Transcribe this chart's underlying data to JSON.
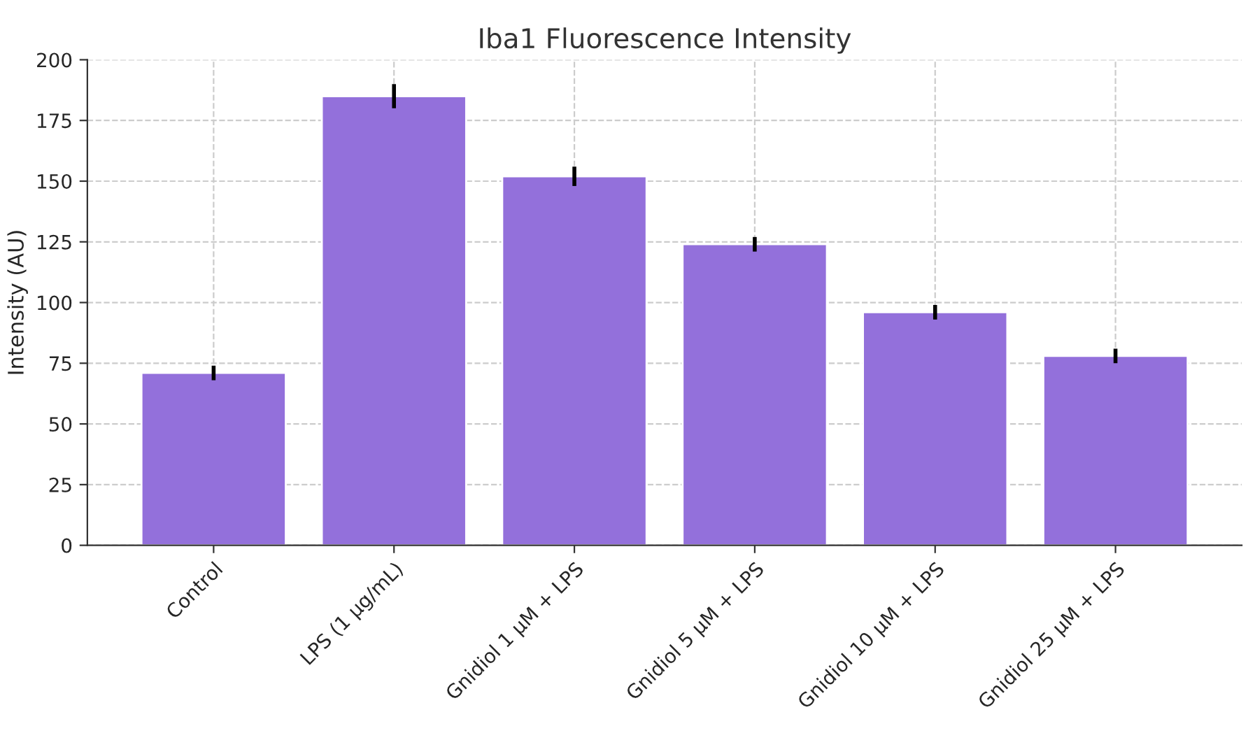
{
  "chart_data": {
    "type": "bar",
    "title": "Iba1 Fluorescence Intensity",
    "ylabel": "Intensity (AU)",
    "categories": [
      "Control",
      "LPS (1 µg/mL)",
      "Gnidiol 1 µM + LPS",
      "Gnidiol 5 µM + LPS",
      "Gnidiol 10 µM + LPS",
      "Gnidiol 25 µM + LPS"
    ],
    "values": [
      71,
      185,
      152,
      124,
      96,
      78
    ],
    "errors": [
      3,
      5,
      4,
      3,
      3,
      3
    ],
    "color": "#9370db",
    "ylim": [
      0,
      200
    ],
    "yticks": [
      0,
      25,
      50,
      75,
      100,
      125,
      150,
      175,
      200
    ],
    "grid": true
  }
}
